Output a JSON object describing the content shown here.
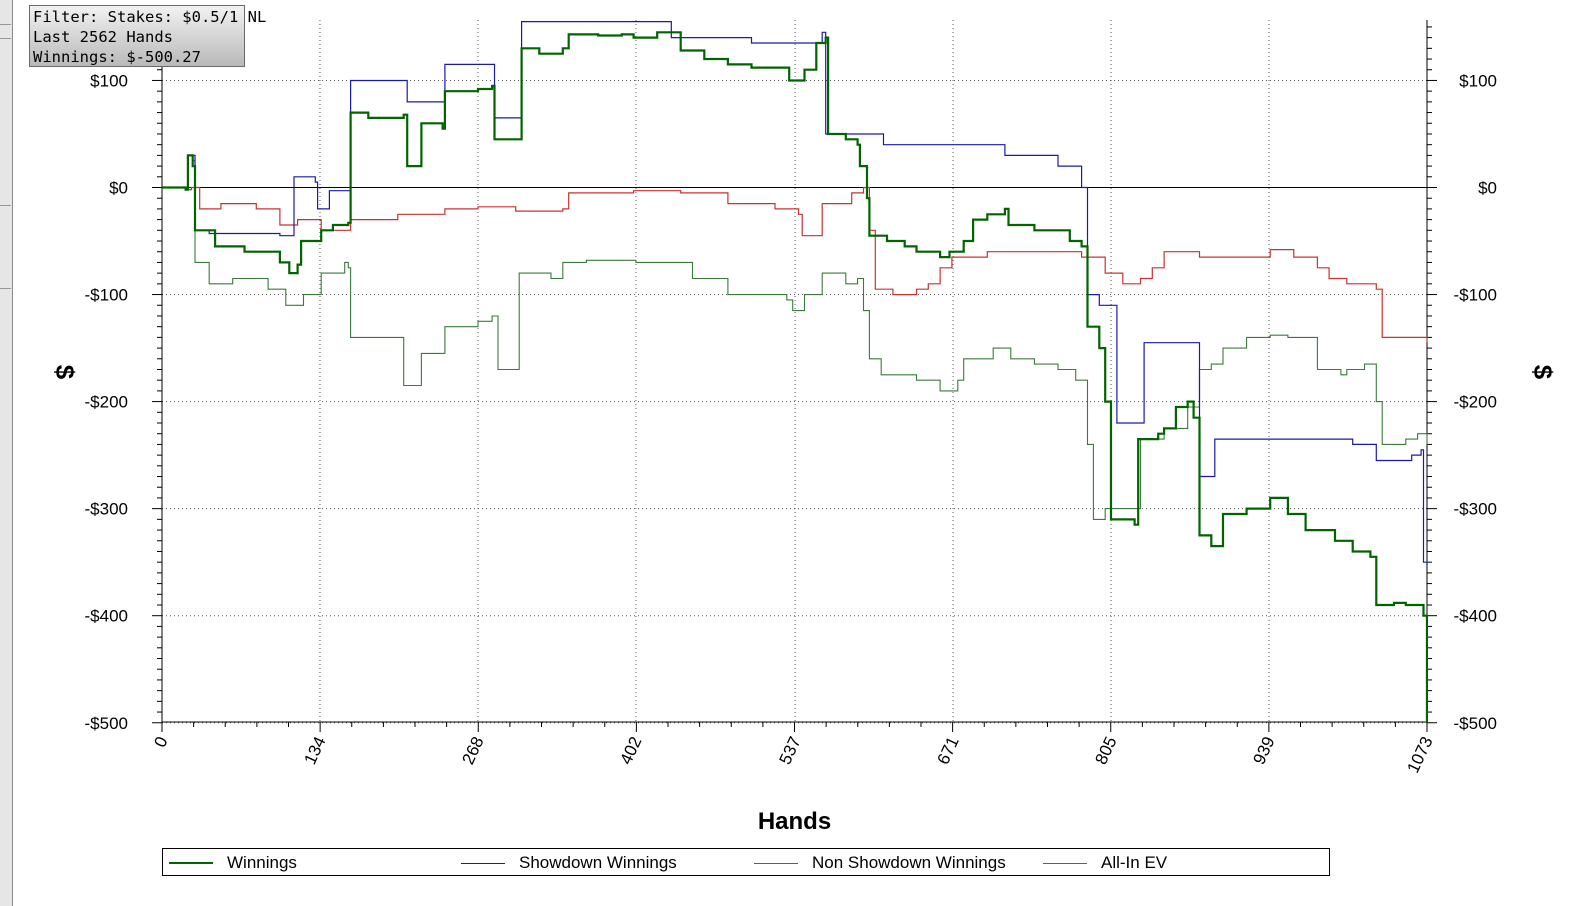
{
  "info_box": {
    "filter": "Filter: Stakes: $0.5/1 NL",
    "hands": "Last  2562 Hands",
    "winnings": "Winnings: $-500.27"
  },
  "chart_data": {
    "type": "line",
    "xlabel": "Hands",
    "ylabel": "$",
    "xlim": [
      0,
      1073
    ],
    "ylim": [
      -500,
      150
    ],
    "x_ticks": [
      0,
      134,
      268,
      402,
      537,
      671,
      805,
      939,
      1073
    ],
    "y_ticks": [
      100,
      0,
      -100,
      -200,
      -300,
      -400,
      -500
    ],
    "y_tick_labels": [
      "$100",
      "$0",
      "-$100",
      "-$200",
      "-$300",
      "-$400",
      "-$500"
    ],
    "grid": true,
    "legend_position": "bottom",
    "series": [
      {
        "name": "Winnings",
        "color": "#006400",
        "points": [
          [
            0,
            0
          ],
          [
            20,
            -2
          ],
          [
            22,
            30
          ],
          [
            26,
            20
          ],
          [
            28,
            -40
          ],
          [
            45,
            -55
          ],
          [
            70,
            -60
          ],
          [
            100,
            -70
          ],
          [
            108,
            -80
          ],
          [
            115,
            -72
          ],
          [
            118,
            -50
          ],
          [
            135,
            -40
          ],
          [
            145,
            -35
          ],
          [
            158,
            -33
          ],
          [
            160,
            70
          ],
          [
            175,
            65
          ],
          [
            205,
            68
          ],
          [
            208,
            20
          ],
          [
            218,
            20
          ],
          [
            220,
            60
          ],
          [
            238,
            55
          ],
          [
            240,
            90
          ],
          [
            268,
            92
          ],
          [
            280,
            95
          ],
          [
            282,
            45
          ],
          [
            300,
            45
          ],
          [
            305,
            130
          ],
          [
            320,
            125
          ],
          [
            340,
            130
          ],
          [
            345,
            143
          ],
          [
            370,
            142
          ],
          [
            390,
            143
          ],
          [
            400,
            140
          ],
          [
            420,
            145
          ],
          [
            433,
            145
          ],
          [
            440,
            128
          ],
          [
            460,
            120
          ],
          [
            480,
            115
          ],
          [
            500,
            112
          ],
          [
            530,
            112
          ],
          [
            532,
            100
          ],
          [
            545,
            110
          ],
          [
            555,
            135
          ],
          [
            563,
            140
          ],
          [
            565,
            50
          ],
          [
            580,
            45
          ],
          [
            590,
            40
          ],
          [
            592,
            20
          ],
          [
            598,
            -10
          ],
          [
            600,
            -45
          ],
          [
            615,
            -50
          ],
          [
            630,
            -55
          ],
          [
            640,
            -60
          ],
          [
            660,
            -65
          ],
          [
            668,
            -60
          ],
          [
            680,
            -50
          ],
          [
            688,
            -30
          ],
          [
            700,
            -25
          ],
          [
            715,
            -20
          ],
          [
            718,
            -35
          ],
          [
            740,
            -40
          ],
          [
            770,
            -50
          ],
          [
            780,
            -55
          ],
          [
            785,
            -130
          ],
          [
            795,
            -150
          ],
          [
            800,
            -200
          ],
          [
            805,
            -310
          ],
          [
            825,
            -315
          ],
          [
            828,
            -235
          ],
          [
            845,
            -230
          ],
          [
            850,
            -225
          ],
          [
            860,
            -205
          ],
          [
            870,
            -200
          ],
          [
            875,
            -215
          ],
          [
            880,
            -325
          ],
          [
            890,
            -335
          ],
          [
            900,
            -305
          ],
          [
            920,
            -300
          ],
          [
            935,
            -300
          ],
          [
            940,
            -290
          ],
          [
            955,
            -305
          ],
          [
            970,
            -320
          ],
          [
            985,
            -320
          ],
          [
            995,
            -330
          ],
          [
            1010,
            -340
          ],
          [
            1025,
            -345
          ],
          [
            1030,
            -390
          ],
          [
            1045,
            -388
          ],
          [
            1055,
            -390
          ],
          [
            1070,
            -400
          ],
          [
            1073,
            -500
          ]
        ]
      },
      {
        "name": "Showdown Winnings",
        "color": "#1a1aaa",
        "points": [
          [
            0,
            0
          ],
          [
            20,
            -2
          ],
          [
            22,
            30
          ],
          [
            26,
            30
          ],
          [
            28,
            -40
          ],
          [
            40,
            -43
          ],
          [
            100,
            -45
          ],
          [
            110,
            -45
          ],
          [
            112,
            10
          ],
          [
            130,
            5
          ],
          [
            132,
            -20
          ],
          [
            140,
            -20
          ],
          [
            142,
            -3
          ],
          [
            158,
            -3
          ],
          [
            160,
            100
          ],
          [
            205,
            100
          ],
          [
            208,
            80
          ],
          [
            238,
            80
          ],
          [
            240,
            115
          ],
          [
            280,
            115
          ],
          [
            282,
            65
          ],
          [
            300,
            65
          ],
          [
            305,
            155
          ],
          [
            430,
            155
          ],
          [
            432,
            140
          ],
          [
            500,
            135
          ],
          [
            560,
            145
          ],
          [
            563,
            50
          ],
          [
            610,
            50
          ],
          [
            612,
            40
          ],
          [
            708,
            40
          ],
          [
            715,
            30
          ],
          [
            760,
            20
          ],
          [
            780,
            0
          ],
          [
            785,
            -100
          ],
          [
            795,
            -110
          ],
          [
            810,
            -220
          ],
          [
            830,
            -220
          ],
          [
            833,
            -145
          ],
          [
            875,
            -145
          ],
          [
            880,
            -270
          ],
          [
            890,
            -270
          ],
          [
            893,
            -235
          ],
          [
            1000,
            -235
          ],
          [
            1010,
            -240
          ],
          [
            1030,
            -255
          ],
          [
            1060,
            -250
          ],
          [
            1068,
            -245
          ],
          [
            1070,
            -350
          ],
          [
            1073,
            -355
          ]
        ]
      },
      {
        "name": "Non Showdown Winnings",
        "color": "#c83232",
        "points": [
          [
            0,
            0
          ],
          [
            20,
            -2
          ],
          [
            25,
            0
          ],
          [
            32,
            -20
          ],
          [
            50,
            -15
          ],
          [
            80,
            -20
          ],
          [
            100,
            -35
          ],
          [
            115,
            -30
          ],
          [
            135,
            -40
          ],
          [
            160,
            -30
          ],
          [
            200,
            -25
          ],
          [
            240,
            -20
          ],
          [
            268,
            -18
          ],
          [
            300,
            -22
          ],
          [
            340,
            -20
          ],
          [
            345,
            -5
          ],
          [
            400,
            -3
          ],
          [
            440,
            -5
          ],
          [
            480,
            -15
          ],
          [
            520,
            -20
          ],
          [
            540,
            -25
          ],
          [
            543,
            -45
          ],
          [
            560,
            -15
          ],
          [
            585,
            -5
          ],
          [
            595,
            0
          ],
          [
            600,
            -40
          ],
          [
            605,
            -95
          ],
          [
            620,
            -100
          ],
          [
            640,
            -95
          ],
          [
            650,
            -90
          ],
          [
            660,
            -75
          ],
          [
            670,
            -65
          ],
          [
            700,
            -60
          ],
          [
            760,
            -60
          ],
          [
            780,
            -65
          ],
          [
            800,
            -80
          ],
          [
            815,
            -90
          ],
          [
            830,
            -85
          ],
          [
            840,
            -75
          ],
          [
            850,
            -60
          ],
          [
            880,
            -65
          ],
          [
            920,
            -65
          ],
          [
            937,
            -65
          ],
          [
            940,
            -58
          ],
          [
            960,
            -65
          ],
          [
            980,
            -75
          ],
          [
            990,
            -85
          ],
          [
            1005,
            -90
          ],
          [
            1030,
            -95
          ],
          [
            1035,
            -140
          ],
          [
            1060,
            -140
          ],
          [
            1073,
            -145
          ]
        ]
      },
      {
        "name": "All-In EV",
        "color": "#3c7a3c",
        "points": [
          [
            0,
            0
          ],
          [
            20,
            -2
          ],
          [
            22,
            30
          ],
          [
            26,
            25
          ],
          [
            28,
            -70
          ],
          [
            40,
            -90
          ],
          [
            60,
            -85
          ],
          [
            90,
            -95
          ],
          [
            105,
            -110
          ],
          [
            120,
            -100
          ],
          [
            135,
            -80
          ],
          [
            155,
            -70
          ],
          [
            158,
            -75
          ],
          [
            160,
            -140
          ],
          [
            180,
            -140
          ],
          [
            200,
            -140
          ],
          [
            205,
            -185
          ],
          [
            220,
            -155
          ],
          [
            240,
            -130
          ],
          [
            268,
            -125
          ],
          [
            280,
            -120
          ],
          [
            285,
            -170
          ],
          [
            300,
            -170
          ],
          [
            303,
            -80
          ],
          [
            330,
            -85
          ],
          [
            340,
            -70
          ],
          [
            360,
            -68
          ],
          [
            402,
            -70
          ],
          [
            435,
            -70
          ],
          [
            450,
            -85
          ],
          [
            480,
            -100
          ],
          [
            530,
            -105
          ],
          [
            535,
            -115
          ],
          [
            545,
            -100
          ],
          [
            560,
            -80
          ],
          [
            580,
            -90
          ],
          [
            590,
            -85
          ],
          [
            595,
            -115
          ],
          [
            600,
            -160
          ],
          [
            610,
            -175
          ],
          [
            640,
            -180
          ],
          [
            660,
            -190
          ],
          [
            675,
            -180
          ],
          [
            680,
            -160
          ],
          [
            705,
            -150
          ],
          [
            720,
            -160
          ],
          [
            740,
            -165
          ],
          [
            760,
            -170
          ],
          [
            775,
            -180
          ],
          [
            785,
            -240
          ],
          [
            790,
            -310
          ],
          [
            800,
            -300
          ],
          [
            808,
            -300
          ],
          [
            812,
            -300
          ],
          [
            830,
            -235
          ],
          [
            850,
            -225
          ],
          [
            870,
            -205
          ],
          [
            880,
            -170
          ],
          [
            890,
            -165
          ],
          [
            900,
            -150
          ],
          [
            920,
            -140
          ],
          [
            940,
            -138
          ],
          [
            955,
            -140
          ],
          [
            980,
            -170
          ],
          [
            1000,
            -175
          ],
          [
            1005,
            -170
          ],
          [
            1020,
            -165
          ],
          [
            1030,
            -200
          ],
          [
            1035,
            -240
          ],
          [
            1055,
            -235
          ],
          [
            1060,
            -235
          ],
          [
            1065,
            -230
          ],
          [
            1073,
            -240
          ]
        ]
      }
    ]
  }
}
